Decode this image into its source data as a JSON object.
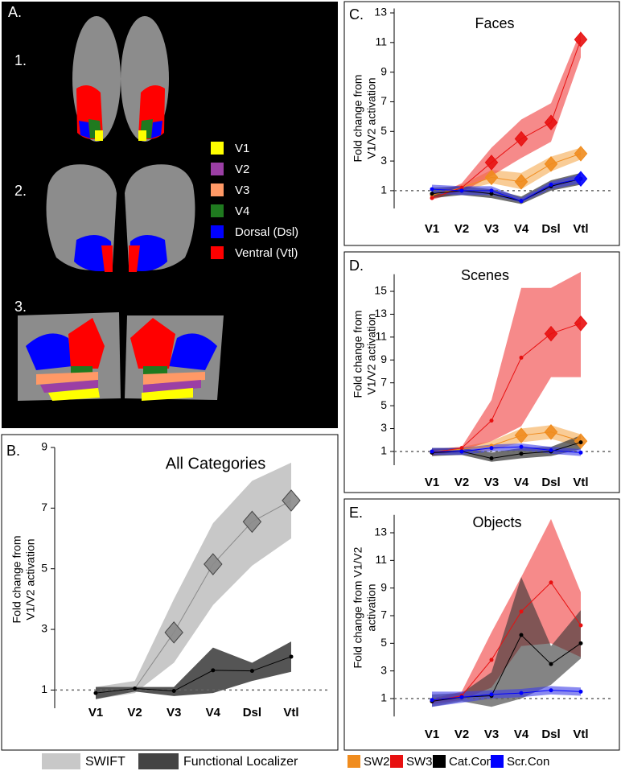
{
  "panel_a": {
    "label": "A.",
    "views": [
      "1.",
      "2.",
      "3."
    ],
    "legend": [
      {
        "name": "V1",
        "color": "#ffff00"
      },
      {
        "name": "V2",
        "color": "#9b3fa5"
      },
      {
        "name": "V3",
        "color": "#ff9966"
      },
      {
        "name": "V4",
        "color": "#1f7a1f"
      },
      {
        "name": "Dorsal (Dsl)",
        "color": "#0000ff"
      },
      {
        "name": "Ventral (Vtl)",
        "color": "#ff0000"
      }
    ]
  },
  "chart_data": [
    {
      "type": "line",
      "label": "B.",
      "title": "All Categories",
      "ylabel": [
        "Fold change from",
        "V1/V2 activation"
      ],
      "categories": [
        "V1",
        "V2",
        "V3",
        "V4",
        "Dsl",
        "Vtl"
      ],
      "ylim": [
        0.4,
        9
      ],
      "yticks": [
        1,
        3,
        5,
        7,
        9
      ],
      "reference_line": 1,
      "series": [
        {
          "name": "SWIFT",
          "color": "#8a8a8a",
          "band_color": "#c8c8c8",
          "values": [
            0.9,
            1.05,
            2.9,
            5.15,
            6.55,
            7.25
          ],
          "upper": [
            1.1,
            1.3,
            4.0,
            6.5,
            7.9,
            8.5
          ],
          "lower": [
            0.7,
            0.9,
            1.9,
            3.8,
            5.1,
            6.0
          ],
          "diamonds": [
            false,
            false,
            true,
            true,
            true,
            true
          ]
        },
        {
          "name": "Functional Localizer",
          "color": "#000000",
          "band_color": "#555555",
          "values": [
            0.9,
            1.05,
            0.97,
            1.65,
            1.63,
            2.1
          ],
          "upper": [
            1.1,
            1.1,
            1.1,
            2.4,
            1.9,
            2.6
          ],
          "lower": [
            0.7,
            0.95,
            0.8,
            0.9,
            1.3,
            1.6
          ],
          "diamonds": [
            false,
            false,
            false,
            false,
            false,
            false
          ]
        }
      ]
    },
    {
      "type": "line",
      "label": "C.",
      "title": "Faces",
      "ylabel": [
        "Fold change from",
        "V1/V2 activation"
      ],
      "categories": [
        "V1",
        "V2",
        "V3",
        "V4",
        "Dsl",
        "Vtl"
      ],
      "ylim": [
        -0.2,
        13.3
      ],
      "yticks": [
        1,
        3,
        5,
        7,
        9,
        11,
        13
      ],
      "reference_line": 1,
      "series": [
        {
          "name": "SW2",
          "color": "#f08c1e",
          "band_color": "rgba(245,170,80,0.6)",
          "values": [
            0.7,
            1.2,
            1.9,
            1.6,
            2.8,
            3.5
          ],
          "upper": [
            0.9,
            1.4,
            2.4,
            2.2,
            3.3,
            3.9
          ],
          "lower": [
            0.5,
            1.0,
            1.5,
            1.1,
            2.3,
            3.1
          ],
          "diamonds": [
            false,
            false,
            true,
            true,
            true,
            true
          ]
        },
        {
          "name": "SW3",
          "color": "#e81010",
          "band_color": "rgba(240,60,60,0.6)",
          "values": [
            0.5,
            1.2,
            2.9,
            4.5,
            5.6,
            11.2
          ],
          "upper": [
            0.6,
            1.5,
            3.9,
            5.8,
            6.9,
            11.8
          ],
          "lower": [
            0.4,
            0.9,
            2.0,
            3.2,
            4.3,
            10.0
          ],
          "diamonds": [
            false,
            false,
            true,
            true,
            true,
            true
          ]
        },
        {
          "name": "Cat.Con",
          "color": "#000000",
          "band_color": "rgba(50,50,50,0.7)",
          "values": [
            0.8,
            1.0,
            0.8,
            0.3,
            1.3,
            1.8
          ],
          "upper": [
            1.2,
            1.3,
            1.1,
            0.6,
            1.7,
            2.2
          ],
          "lower": [
            0.5,
            0.7,
            0.5,
            0.1,
            1.0,
            1.4
          ],
          "diamonds": [
            false,
            false,
            false,
            false,
            false,
            false
          ]
        },
        {
          "name": "Scr.Con",
          "color": "#0000ff",
          "band_color": "rgba(60,60,230,0.6)",
          "values": [
            1.1,
            1.0,
            1.0,
            0.3,
            1.4,
            1.8
          ],
          "upper": [
            1.4,
            1.3,
            1.3,
            0.5,
            1.6,
            2.1
          ],
          "lower": [
            0.8,
            0.7,
            0.7,
            0.2,
            1.1,
            1.5
          ],
          "diamonds": [
            false,
            false,
            false,
            false,
            false,
            true
          ]
        }
      ]
    },
    {
      "type": "line",
      "label": "D.",
      "title": "Scenes",
      "ylabel": [
        "Fold change from",
        "V1/V2 activation"
      ],
      "categories": [
        "V1",
        "V2",
        "V3",
        "V4",
        "Dsl",
        "Vtl"
      ],
      "ylim": [
        -0.2,
        16.5
      ],
      "yticks": [
        1,
        3,
        5,
        7,
        9,
        11,
        13,
        15
      ],
      "reference_line": 1,
      "series": [
        {
          "name": "SW2",
          "color": "#f08c1e",
          "band_color": "rgba(245,170,80,0.6)",
          "values": [
            1.0,
            1.2,
            1.5,
            2.4,
            2.7,
            1.9
          ],
          "upper": [
            1.2,
            1.4,
            1.9,
            3.0,
            3.3,
            2.5
          ],
          "lower": [
            0.8,
            1.0,
            1.1,
            1.8,
            2.1,
            1.4
          ],
          "diamonds": [
            false,
            false,
            false,
            true,
            true,
            true
          ]
        },
        {
          "name": "SW3",
          "color": "#e81010",
          "band_color": "rgba(240,60,60,0.6)",
          "values": [
            0.9,
            1.3,
            3.7,
            9.2,
            11.3,
            12.2
          ],
          "upper": [
            1.2,
            1.4,
            5.5,
            15.3,
            15.3,
            16.7
          ],
          "lower": [
            0.6,
            1.1,
            1.9,
            3.2,
            7.5,
            7.5
          ],
          "diamonds": [
            false,
            false,
            false,
            false,
            true,
            true
          ]
        },
        {
          "name": "Cat.Con",
          "color": "#000000",
          "band_color": "rgba(50,50,50,0.7)",
          "values": [
            0.9,
            1.0,
            0.4,
            0.8,
            1.0,
            1.8
          ],
          "upper": [
            1.3,
            1.3,
            0.9,
            1.3,
            1.4,
            2.4
          ],
          "lower": [
            0.6,
            0.7,
            0.1,
            0.4,
            0.6,
            1.2
          ],
          "diamonds": [
            false,
            false,
            false,
            false,
            false,
            false
          ]
        },
        {
          "name": "Scr.Con",
          "color": "#0000ff",
          "band_color": "rgba(60,60,230,0.6)",
          "values": [
            1.0,
            1.0,
            1.3,
            1.4,
            1.1,
            0.9
          ],
          "upper": [
            1.3,
            1.3,
            1.6,
            1.7,
            1.4,
            1.2
          ],
          "lower": [
            0.7,
            0.7,
            1.0,
            1.1,
            0.8,
            0.6
          ],
          "diamonds": [
            false,
            false,
            false,
            false,
            false,
            false
          ]
        }
      ]
    },
    {
      "type": "line",
      "label": "E.",
      "title": "Objects",
      "ylabel": [
        "Fold change from V1/V2",
        "activation"
      ],
      "categories": [
        "V1",
        "V2",
        "V3",
        "V4",
        "Dsl",
        "Vtl"
      ],
      "ylim": [
        -0.3,
        14.3
      ],
      "yticks": [
        1,
        3,
        5,
        7,
        9,
        11,
        13
      ],
      "reference_line": 1,
      "series": [
        {
          "name": "SW3",
          "color": "#e81010",
          "band_color": "rgba(240,60,60,0.6)",
          "values": [
            0.8,
            1.2,
            3.8,
            7.3,
            9.4,
            6.3
          ],
          "upper": [
            1.0,
            1.5,
            5.8,
            9.8,
            14.0,
            8.7
          ],
          "lower": [
            0.6,
            0.9,
            1.8,
            4.8,
            5.0,
            4.0
          ],
          "diamonds": [
            false,
            false,
            false,
            false,
            false,
            false
          ]
        },
        {
          "name": "Cat.Con",
          "color": "#000000",
          "band_color": "rgba(50,50,50,0.6)",
          "values": [
            0.8,
            1.1,
            1.2,
            5.6,
            3.5,
            5.0
          ],
          "upper": [
            1.3,
            1.4,
            2.9,
            9.8,
            4.8,
            7.4
          ],
          "lower": [
            0.4,
            0.8,
            0.4,
            1.0,
            2.0,
            3.9
          ],
          "diamonds": [
            false,
            false,
            false,
            false,
            false,
            false
          ]
        },
        {
          "name": "Scr.Con",
          "color": "#0000ff",
          "band_color": "rgba(60,60,230,0.6)",
          "values": [
            0.9,
            1.1,
            1.3,
            1.4,
            1.6,
            1.5
          ],
          "upper": [
            1.5,
            1.5,
            1.6,
            1.7,
            1.9,
            1.8
          ],
          "lower": [
            0.4,
            0.7,
            1.0,
            1.1,
            1.3,
            1.2
          ],
          "diamonds": [
            false,
            false,
            false,
            false,
            false,
            false
          ]
        }
      ]
    }
  ]
}
